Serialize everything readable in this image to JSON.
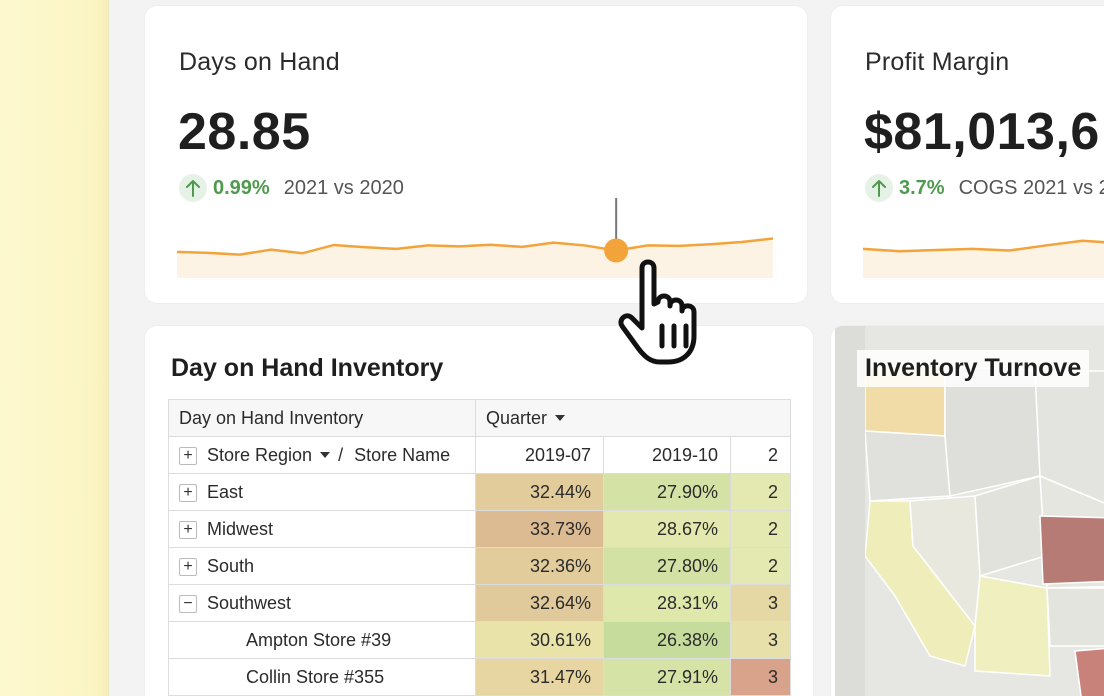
{
  "kpi_days_on_hand": {
    "title": "Days on Hand",
    "value": "28.85",
    "delta": "0.99%",
    "comparison": "2021 vs 2020",
    "accent_color": "#f2a33a",
    "delta_color": "#4e9a4e",
    "sparkline": [
      0.42,
      0.38,
      0.3,
      0.52,
      0.36,
      0.72,
      0.62,
      0.55,
      0.7,
      0.66,
      0.73,
      0.64,
      0.82,
      0.7,
      0.48,
      0.7,
      0.68,
      0.75,
      0.85,
      1.0
    ],
    "highlight_index": 14
  },
  "kpi_profit_margin": {
    "title": "Profit Margin",
    "value": "$81,013,6",
    "delta": "3.7%",
    "comparison": "COGS 2021 vs 2",
    "sparkline": [
      0.55,
      0.45,
      0.5,
      0.55,
      0.48,
      0.7,
      0.9,
      0.8
    ]
  },
  "inventory_table": {
    "title": "Day on Hand Inventory",
    "header_label": "Day on Hand Inventory",
    "quarter_label": "Quarter",
    "row_header": "Store Region",
    "row_header_sep": "/",
    "row_header_sub": "Store Name",
    "columns": [
      "2019-07",
      "2019-10",
      "2"
    ],
    "rows": [
      {
        "label": "East",
        "toggle": "+",
        "values": [
          "32.44%",
          "27.90%",
          "2"
        ],
        "colors": [
          "#e2cc9c",
          "#d5e2a6",
          "#e3e9b0"
        ]
      },
      {
        "label": "Midwest",
        "toggle": "+",
        "values": [
          "33.73%",
          "28.67%",
          "2"
        ],
        "colors": [
          "#dcbb92",
          "#e3e9ae",
          "#e3e9b0"
        ]
      },
      {
        "label": "South",
        "toggle": "+",
        "values": [
          "32.36%",
          "27.80%",
          "2"
        ],
        "colors": [
          "#e2cc9c",
          "#d3e1a4",
          "#e3e9b0"
        ]
      },
      {
        "label": "Southwest",
        "toggle": "−",
        "values": [
          "32.64%",
          "28.31%",
          "3"
        ],
        "colors": [
          "#e0c99b",
          "#dfe8ab",
          "#e5d8a4"
        ]
      },
      {
        "label": "Ampton Store #39",
        "toggle": "",
        "values": [
          "30.61%",
          "26.38%",
          "3"
        ],
        "colors": [
          "#e9e3a9",
          "#c6dc9c",
          "#e7e0aa"
        ]
      },
      {
        "label": "Collin Store #355",
        "toggle": "",
        "values": [
          "31.47%",
          "27.91%",
          "3"
        ],
        "colors": [
          "#e7d6a2",
          "#d6e3a6",
          "#d8a38a"
        ]
      }
    ]
  },
  "map": {
    "title": "Inventory Turnove"
  }
}
